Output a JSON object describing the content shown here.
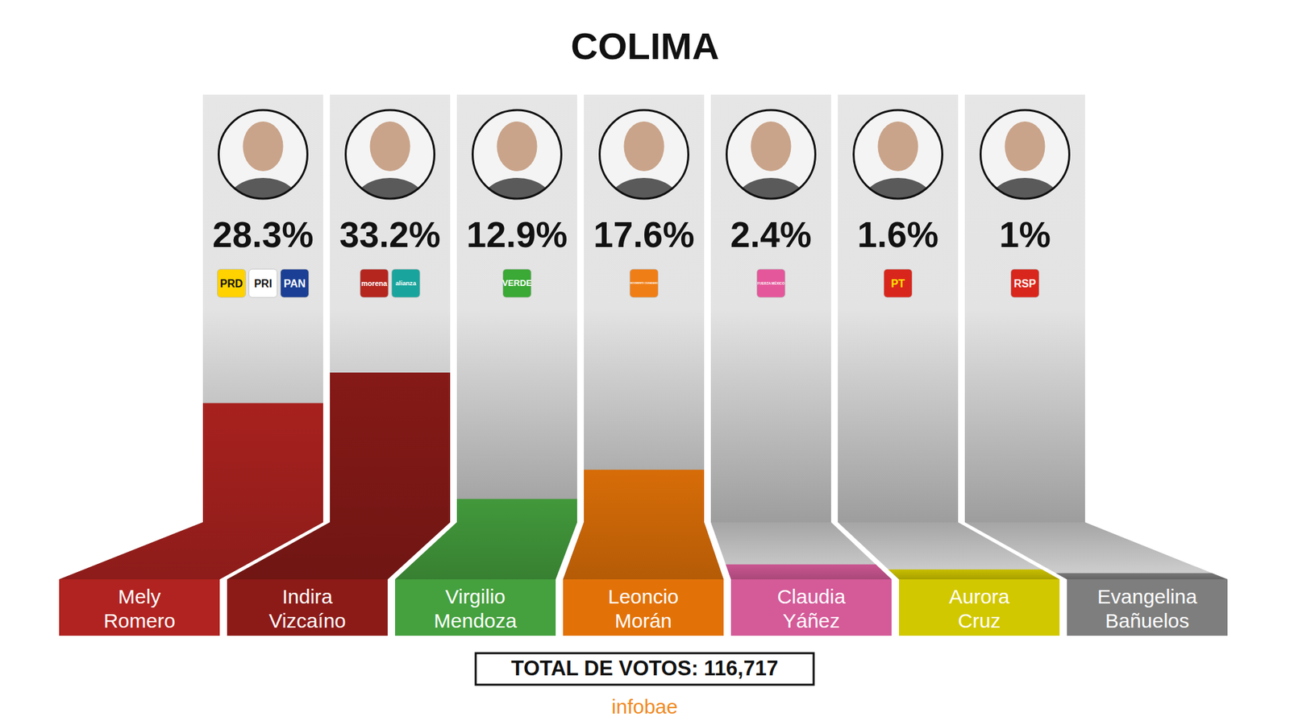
{
  "chart_data": {
    "type": "bar",
    "title": "COLIMA",
    "categories": [
      "Mely Romero",
      "Indira Vizcaíno",
      "Virgilio Mendoza",
      "Leoncio Morán",
      "Claudia Yáñez",
      "Aurora Cruz",
      "Evangelina Bañuelos"
    ],
    "values": [
      28.3,
      33.2,
      12.9,
      17.6,
      2.4,
      1.6,
      1
    ],
    "value_labels": [
      "28.3%",
      "33.2%",
      "12.9%",
      "17.6%",
      "2.4%",
      "1.6%",
      "1%"
    ],
    "data_labels": true,
    "tick_labels": false,
    "colors": [
      "#b02320",
      "#8c1b18",
      "#45a03e",
      "#e27208",
      "#d45a98",
      "#d2c800",
      "#7e7e7e"
    ],
    "parties": [
      [
        "PRD",
        "PRI",
        "PAN"
      ],
      [
        "morena",
        "alianza"
      ],
      [
        "VERDE"
      ],
      [
        "MOVIMIENTO CIUDADANO"
      ],
      [
        "FUERZA MÉXICO"
      ],
      [
        "PT"
      ],
      [
        "RSP"
      ]
    ],
    "total_label": "TOTAL DE VOTOS: 116,717",
    "source": "infobae"
  }
}
